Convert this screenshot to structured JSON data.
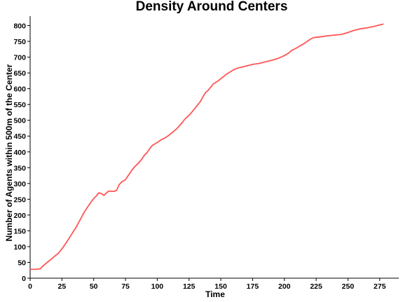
{
  "chart_data": {
    "type": "line",
    "title": "Density Around Centers",
    "xlabel": "Time",
    "ylabel": "Number of Agents within 500m of the Center",
    "xlim": [
      0,
      290
    ],
    "ylim": [
      0,
      830
    ],
    "xticks": [
      "0",
      "25",
      "50",
      "75",
      "100",
      "125",
      "150",
      "175",
      "200",
      "225",
      "250",
      "275"
    ],
    "yticks": [
      "0",
      "50",
      "100",
      "150",
      "200",
      "250",
      "300",
      "350",
      "400",
      "450",
      "500",
      "550",
      "600",
      "650",
      "700",
      "750",
      "800"
    ],
    "grid": false,
    "legend": "none",
    "series": [
      {
        "color": "#ff5555",
        "x": [
          0,
          5,
          8,
          10,
          12,
          14,
          16,
          18,
          20,
          22,
          24,
          26,
          28,
          30,
          32,
          34,
          36,
          38,
          40,
          42,
          44,
          46,
          48,
          50,
          52,
          54,
          56,
          58,
          60,
          62,
          64,
          66,
          68,
          70,
          72,
          75,
          78,
          80,
          82,
          84,
          86,
          88,
          90,
          92,
          94,
          96,
          98,
          100,
          103,
          106,
          109,
          112,
          115,
          118,
          120,
          122,
          124,
          126,
          128,
          130,
          132,
          134,
          136,
          138,
          140,
          142,
          144,
          146,
          148,
          150,
          152,
          154,
          156,
          158,
          160,
          163,
          166,
          170,
          175,
          180,
          185,
          190,
          195,
          200,
          203,
          206,
          209,
          212,
          215,
          218,
          221,
          223,
          225,
          228,
          231,
          235,
          240,
          245,
          250,
          255,
          260,
          265,
          270,
          275,
          278
        ],
        "y": [
          28,
          28,
          30,
          38,
          45,
          52,
          58,
          65,
          72,
          78,
          88,
          98,
          110,
          122,
          135,
          148,
          160,
          175,
          190,
          205,
          218,
          230,
          242,
          252,
          260,
          270,
          268,
          262,
          270,
          276,
          275,
          275,
          278,
          296,
          305,
          312,
          330,
          342,
          352,
          360,
          368,
          378,
          390,
          398,
          410,
          420,
          425,
          430,
          438,
          444,
          452,
          462,
          472,
          485,
          495,
          505,
          512,
          520,
          530,
          540,
          550,
          560,
          575,
          588,
          595,
          605,
          615,
          620,
          625,
          632,
          638,
          645,
          650,
          655,
          660,
          665,
          668,
          672,
          677,
          680,
          685,
          690,
          696,
          705,
          712,
          722,
          728,
          735,
          742,
          750,
          758,
          762,
          763,
          764,
          766,
          768,
          770,
          772,
          778,
          785,
          790,
          793,
          797,
          802,
          805
        ]
      }
    ]
  }
}
